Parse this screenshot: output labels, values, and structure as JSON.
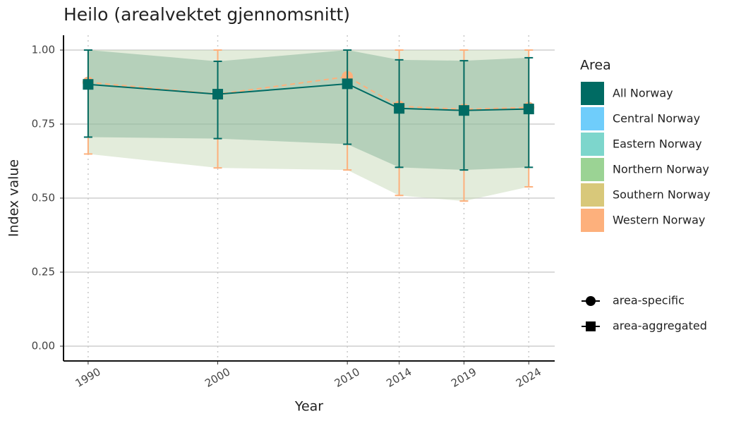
{
  "chart_data": {
    "type": "line",
    "title": "Heilo (arealvektet gjennomsnitt)",
    "x_label": "Year",
    "y_label": "Index value",
    "x": [
      1990,
      2000,
      2010,
      2014,
      2019,
      2024
    ],
    "xlim": [
      1988.1,
      2026
    ],
    "xticks": [
      1990,
      2000,
      2010,
      2014,
      2019,
      2024
    ],
    "ylim": [
      -0.05,
      1.05
    ],
    "yticks": [
      {
        "value": 0,
        "label": "0.00"
      },
      0.25,
      {
        "value": 0.5,
        "label": "0.50"
      },
      0.75,
      {
        "value": 1,
        "label": "1.00"
      }
    ],
    "grid": true,
    "legend_title": "Area",
    "series": [
      {
        "name": "All Norway",
        "color": "#006b63",
        "shape": "square",
        "values": [
          0.884,
          0.851,
          0.886,
          0.803,
          0.796,
          0.801
        ],
        "lower": [
          0.706,
          0.701,
          0.682,
          0.604,
          0.595,
          0.604
        ],
        "upper": [
          1.0,
          0.962,
          1.0,
          0.967,
          0.964,
          0.974
        ]
      },
      {
        "name": "Central Norway",
        "color": "#6fcdfb",
        "values": [
          null,
          null,
          null,
          null,
          null,
          null
        ]
      },
      {
        "name": "Eastern Norway",
        "color": "#7dd6cc",
        "values": [
          null,
          null,
          null,
          null,
          null,
          null
        ]
      },
      {
        "name": "Northern Norway",
        "color": "#9bd394",
        "values": [
          null,
          null,
          null,
          null,
          null,
          null
        ]
      },
      {
        "name": "Southern Norway",
        "color": "#d8c87a",
        "values": [
          null,
          null,
          null,
          null,
          null,
          null
        ]
      },
      {
        "name": "Western Norway",
        "color": "#fdb07c",
        "shape": "circle",
        "values": [
          0.891,
          0.851,
          0.91,
          0.81,
          0.8,
          0.806
        ],
        "lower": [
          0.649,
          0.602,
          0.595,
          0.509,
          0.49,
          0.538
        ],
        "upper": [
          1.0,
          1.0,
          1.0,
          1.0,
          1.0,
          1.0
        ]
      }
    ],
    "shape_legend": [
      "area-specific",
      "area-aggregated"
    ]
  }
}
